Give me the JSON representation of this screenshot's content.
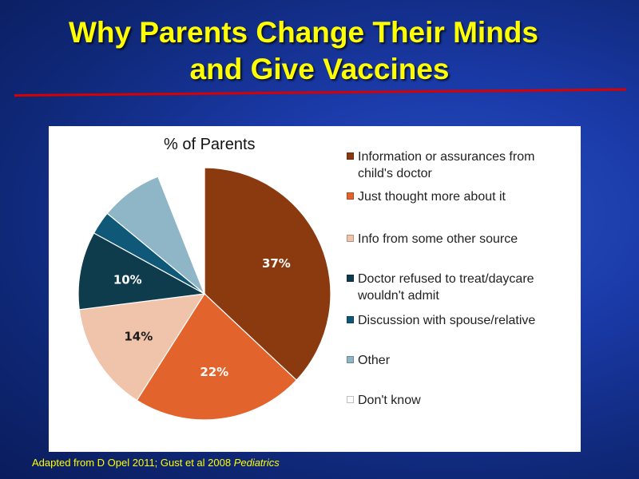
{
  "slide": {
    "title_line1": "Why Parents Change Their Minds",
    "title_line2": "and Give Vaccines",
    "footnote_text": "Adapted from D Opel 2011; Gust et al 2008 ",
    "footnote_journal": "Pediatrics"
  },
  "chart_data": {
    "type": "pie",
    "title": "% of Parents",
    "legend_position": "right",
    "slices": [
      {
        "label_lines": [
          "Information or assurances from",
          "child's doctor"
        ],
        "value": 37,
        "data_label": "37%",
        "color": "#8b3a10"
      },
      {
        "label_lines": [
          "Just thought more about it"
        ],
        "value": 22,
        "data_label": "22%",
        "color": "#e2632b"
      },
      {
        "label_lines": [
          "Info from some other source"
        ],
        "value": 14,
        "data_label": "14%",
        "color": "#f0c4ab"
      },
      {
        "label_lines": [
          "Doctor refused to treat/daycare",
          "wouldn't admit"
        ],
        "value": 10,
        "data_label": "10%",
        "color": "#0e3c4d"
      },
      {
        "label_lines": [
          "Discussion with spouse/relative"
        ],
        "value": 3,
        "data_label": "",
        "color": "#0f5877"
      },
      {
        "label_lines": [
          "Other"
        ],
        "value": 8,
        "data_label": "",
        "color": "#8fb6c6"
      },
      {
        "label_lines": [
          "Don't know"
        ],
        "value": 6,
        "data_label": "",
        "color": "#ffffff"
      }
    ]
  }
}
